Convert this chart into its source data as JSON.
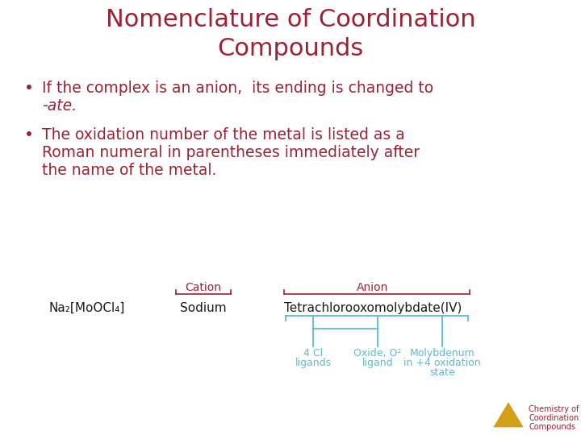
{
  "title_line1": "Nomenclature of Coordination",
  "title_line2": "Compounds",
  "title_color": "#9b2335",
  "bg_color": "#ffffff",
  "bullet_color": "#9b2335",
  "bullet1_text1": "If the complex is an anion,  its ending is changed to",
  "bullet1_text2": "-ate.",
  "bullet2_text1": "The oxidation number of the metal is listed as a",
  "bullet2_text2": "Roman numeral in parentheses immediately after",
  "bullet2_text3": "the name of the metal.",
  "formula": "Na₂[MoOCl₄]",
  "cation_label": "Cation",
  "anion_label": "Anion",
  "sodium_text": "Sodium",
  "anion_name": "Tetrachlorooxomolybdate(IV)",
  "label1_line1": "4 Cl",
  "label1_line2": "ligands",
  "label2_line1": "Oxide, O²",
  "label2_line2": "ligand",
  "label3_line1": "Molybdenum",
  "label3_line2": "in +4 oxidation",
  "label3_line3": "state",
  "watermark1": "Chemistry of",
  "watermark2": "Coordination",
  "watermark3": "Compounds",
  "red_color": "#9b2335",
  "teal_color": "#5bbcd0",
  "black_text": "#1a1a1a",
  "watermark_color": "#9b2335",
  "formula_color": "#1a1a1a",
  "title_fontsize": 22,
  "bullet_fontsize": 13.5,
  "diagram_fontsize": 11,
  "label_fontsize": 9
}
